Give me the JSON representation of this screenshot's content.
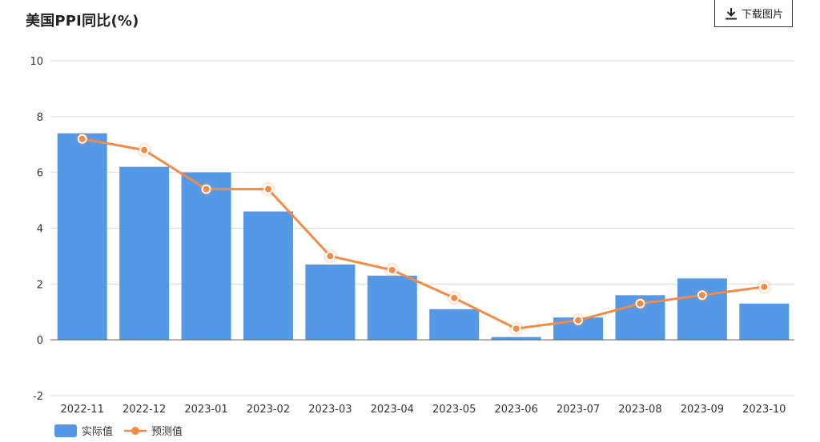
{
  "header": {
    "title": "美国PPI同比(%)",
    "download_label": "下载图片"
  },
  "colors": {
    "bar": "#5499E8",
    "line": "#F28C45",
    "grid": "#d9d9d9",
    "axis": "#555555"
  },
  "legend": {
    "bar_label": "实际值",
    "line_label": "预测值"
  },
  "chart_data": {
    "type": "bar",
    "title": "美国PPI同比(%)",
    "xlabel": "",
    "ylabel": "",
    "ylim": [
      -2,
      10
    ],
    "yticks": [
      -2,
      0,
      2,
      4,
      6,
      8,
      10
    ],
    "categories": [
      "2022-11",
      "2022-12",
      "2023-01",
      "2023-02",
      "2023-03",
      "2023-04",
      "2023-05",
      "2023-06",
      "2023-07",
      "2023-08",
      "2023-09",
      "2023-10"
    ],
    "grid": true,
    "legend_position": "bottom-left",
    "series": [
      {
        "name": "实际值",
        "type": "bar",
        "values": [
          7.4,
          6.2,
          6.0,
          4.6,
          2.7,
          2.3,
          1.1,
          0.1,
          0.8,
          1.6,
          2.2,
          1.3
        ]
      },
      {
        "name": "预测值",
        "type": "line",
        "values": [
          7.2,
          6.8,
          5.4,
          5.4,
          3.0,
          2.5,
          1.5,
          0.4,
          0.7,
          1.3,
          1.6,
          1.9
        ]
      }
    ]
  }
}
